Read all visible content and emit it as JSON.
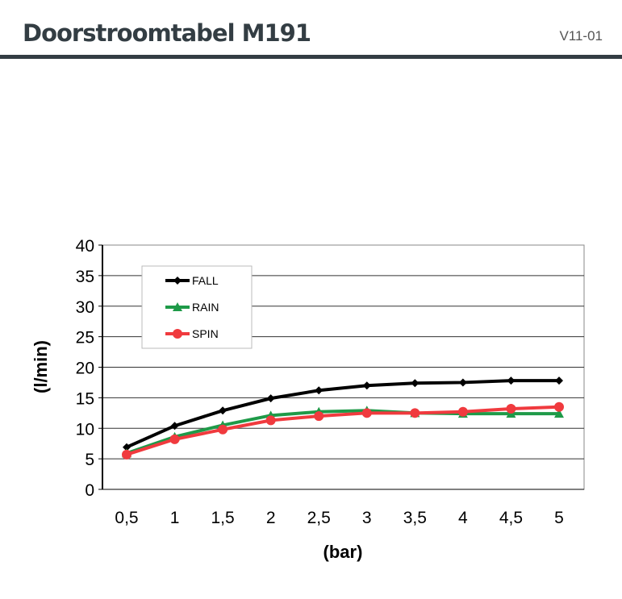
{
  "header": {
    "title": "Doorstroomtabel M191",
    "version": "V11-01"
  },
  "chart_data": {
    "type": "line",
    "title": "",
    "xlabel": "(bar)",
    "ylabel": "(l/min)",
    "categories": [
      "0,5",
      "1",
      "1,5",
      "2",
      "2,5",
      "3",
      "3,5",
      "4",
      "4,5",
      "5"
    ],
    "x": [
      0.5,
      1,
      1.5,
      2,
      2.5,
      3,
      3.5,
      4,
      4.5,
      5
    ],
    "ylim": [
      0,
      40
    ],
    "yticks": [
      0,
      5,
      10,
      15,
      20,
      25,
      30,
      35,
      40
    ],
    "grid": true,
    "legend": "top-left",
    "series": [
      {
        "name": "FALL",
        "color": "#000000",
        "marker": "diamond",
        "values": [
          6.9,
          10.4,
          12.9,
          14.9,
          16.2,
          17.0,
          17.4,
          17.5,
          17.8,
          17.8
        ]
      },
      {
        "name": "RAIN",
        "color": "#1e9a48",
        "marker": "triangle",
        "values": [
          5.9,
          8.6,
          10.5,
          12.1,
          12.7,
          12.9,
          12.5,
          12.4,
          12.4,
          12.4
        ]
      },
      {
        "name": "SPIN",
        "color": "#f03a3e",
        "marker": "circle",
        "values": [
          5.7,
          8.2,
          9.8,
          11.3,
          12.0,
          12.5,
          12.5,
          12.7,
          13.2,
          13.5
        ]
      }
    ]
  }
}
